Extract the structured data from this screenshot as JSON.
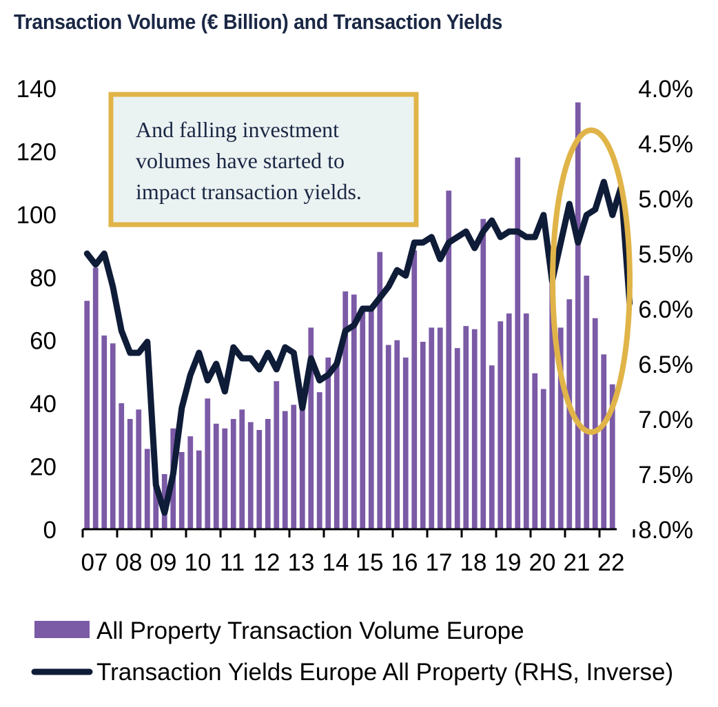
{
  "title": "Transaction Volume (€ Billion) and Transaction Yields",
  "chart_data": {
    "type": "bar+line",
    "title": "Transaction Volume (€ Billion) and Transaction Yields",
    "x_tick_labels": [
      "07",
      "08",
      "09",
      "10",
      "11",
      "12",
      "13",
      "14",
      "15",
      "16",
      "17",
      "18",
      "19",
      "20",
      "21",
      "22"
    ],
    "y_left": {
      "label": "",
      "range": [
        0,
        140
      ],
      "ticks": [
        0,
        20,
        40,
        60,
        80,
        100,
        120,
        140
      ],
      "tick_labels": [
        "0",
        "20",
        "40",
        "60",
        "80",
        "100",
        "120",
        "140"
      ]
    },
    "y_right": {
      "label": "RHS, Inverse",
      "inverted": true,
      "range": [
        4.0,
        8.0
      ],
      "ticks": [
        4.0,
        4.5,
        5.0,
        5.5,
        6.0,
        6.5,
        7.0,
        7.5,
        8.0
      ],
      "tick_labels": [
        "4.0%",
        "4.5%",
        "5.0%",
        "5.5%",
        "6.0%",
        "6.5%",
        "7.0%",
        "7.5%",
        "8.0%"
      ]
    },
    "series": [
      {
        "name": "All Property Transaction Volume Europe",
        "type": "bar",
        "axis": "left",
        "color": "#7b5aa6",
        "values": [
          72.5,
          83,
          61.5,
          59,
          40,
          35,
          38,
          25.5,
          15.5,
          17.5,
          32,
          24.5,
          29.5,
          25,
          41.5,
          33.5,
          32,
          35,
          38,
          34,
          31.5,
          35,
          47,
          37.5,
          39.5,
          40,
          64,
          43.5,
          54.5,
          53.5,
          75.5,
          74.5,
          70,
          71,
          88,
          58.5,
          60,
          54.5,
          88.5,
          59.5,
          64,
          64,
          107.5,
          57.5,
          64.5,
          63.5,
          98.5,
          52,
          66,
          68.5,
          118,
          68.5,
          49.5,
          44.5,
          90,
          64,
          73,
          135.5,
          80.5,
          67,
          55.5,
          46
        ]
      },
      {
        "name": "Transaction Yields Europe All Property (RHS, Inverse)",
        "type": "line",
        "axis": "right",
        "color": "#0f1c38",
        "values": [
          5.5,
          5.6,
          5.5,
          5.8,
          6.2,
          6.4,
          6.4,
          6.3,
          7.6,
          7.85,
          7.5,
          6.9,
          6.6,
          6.4,
          6.65,
          6.5,
          6.75,
          6.35,
          6.45,
          6.45,
          6.55,
          6.4,
          6.55,
          6.35,
          6.4,
          6.9,
          6.45,
          6.65,
          6.6,
          6.5,
          6.2,
          6.15,
          6.0,
          6.0,
          5.9,
          5.8,
          5.65,
          5.7,
          5.4,
          5.4,
          5.35,
          5.55,
          5.4,
          5.35,
          5.3,
          5.45,
          5.3,
          5.2,
          5.35,
          5.3,
          5.3,
          5.35,
          5.35,
          5.15,
          5.75,
          5.4,
          5.05,
          5.4,
          5.15,
          5.1,
          4.85,
          5.15,
          4.9,
          5.95
        ]
      }
    ],
    "legend_position": "bottom"
  },
  "callout": {
    "lines": [
      "And falling investment",
      "volumes have started to",
      "impact transaction yields."
    ],
    "border_color": "#e0b448",
    "fill_color": "#ebf2f2"
  },
  "highlight_ellipse_color": "#e0b448",
  "legend": [
    {
      "label": "All Property Transaction Volume Europe",
      "color": "#7b5aa6",
      "kind": "bar"
    },
    {
      "label": "Transaction Yields Europe All Property (RHS, Inverse)",
      "color": "#0f1c38",
      "kind": "line"
    }
  ]
}
